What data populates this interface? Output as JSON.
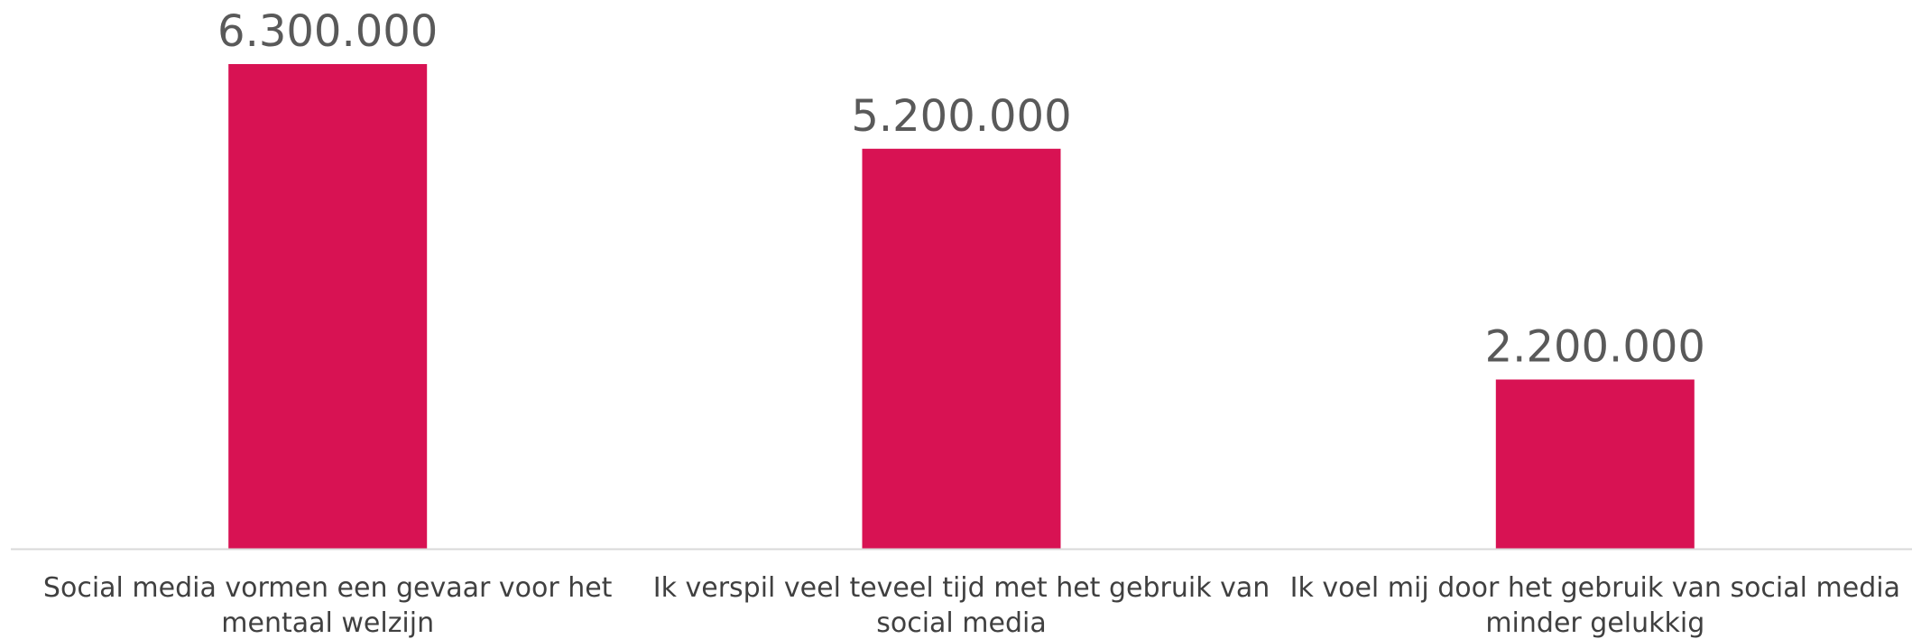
{
  "chart_data": {
    "type": "bar",
    "categories": [
      [
        "Social media vormen een gevaar voor het",
        "mentaal welzijn"
      ],
      [
        "Ik verspil veel teveel tijd met het gebruik van",
        "social media"
      ],
      [
        "Ik voel mij door het gebruik van social media",
        "minder gelukkig"
      ]
    ],
    "values": [
      6300000,
      5200000,
      2200000
    ],
    "value_labels": [
      "6.300.000",
      "5.200.000",
      "2.200.000"
    ],
    "ylim": [
      0,
      6300000
    ],
    "grid": false,
    "legend": "none",
    "colors": {
      "bar": "#D81253",
      "axis": "#d9d9d9",
      "value_text": "#595959",
      "category_text": "#404040"
    }
  }
}
